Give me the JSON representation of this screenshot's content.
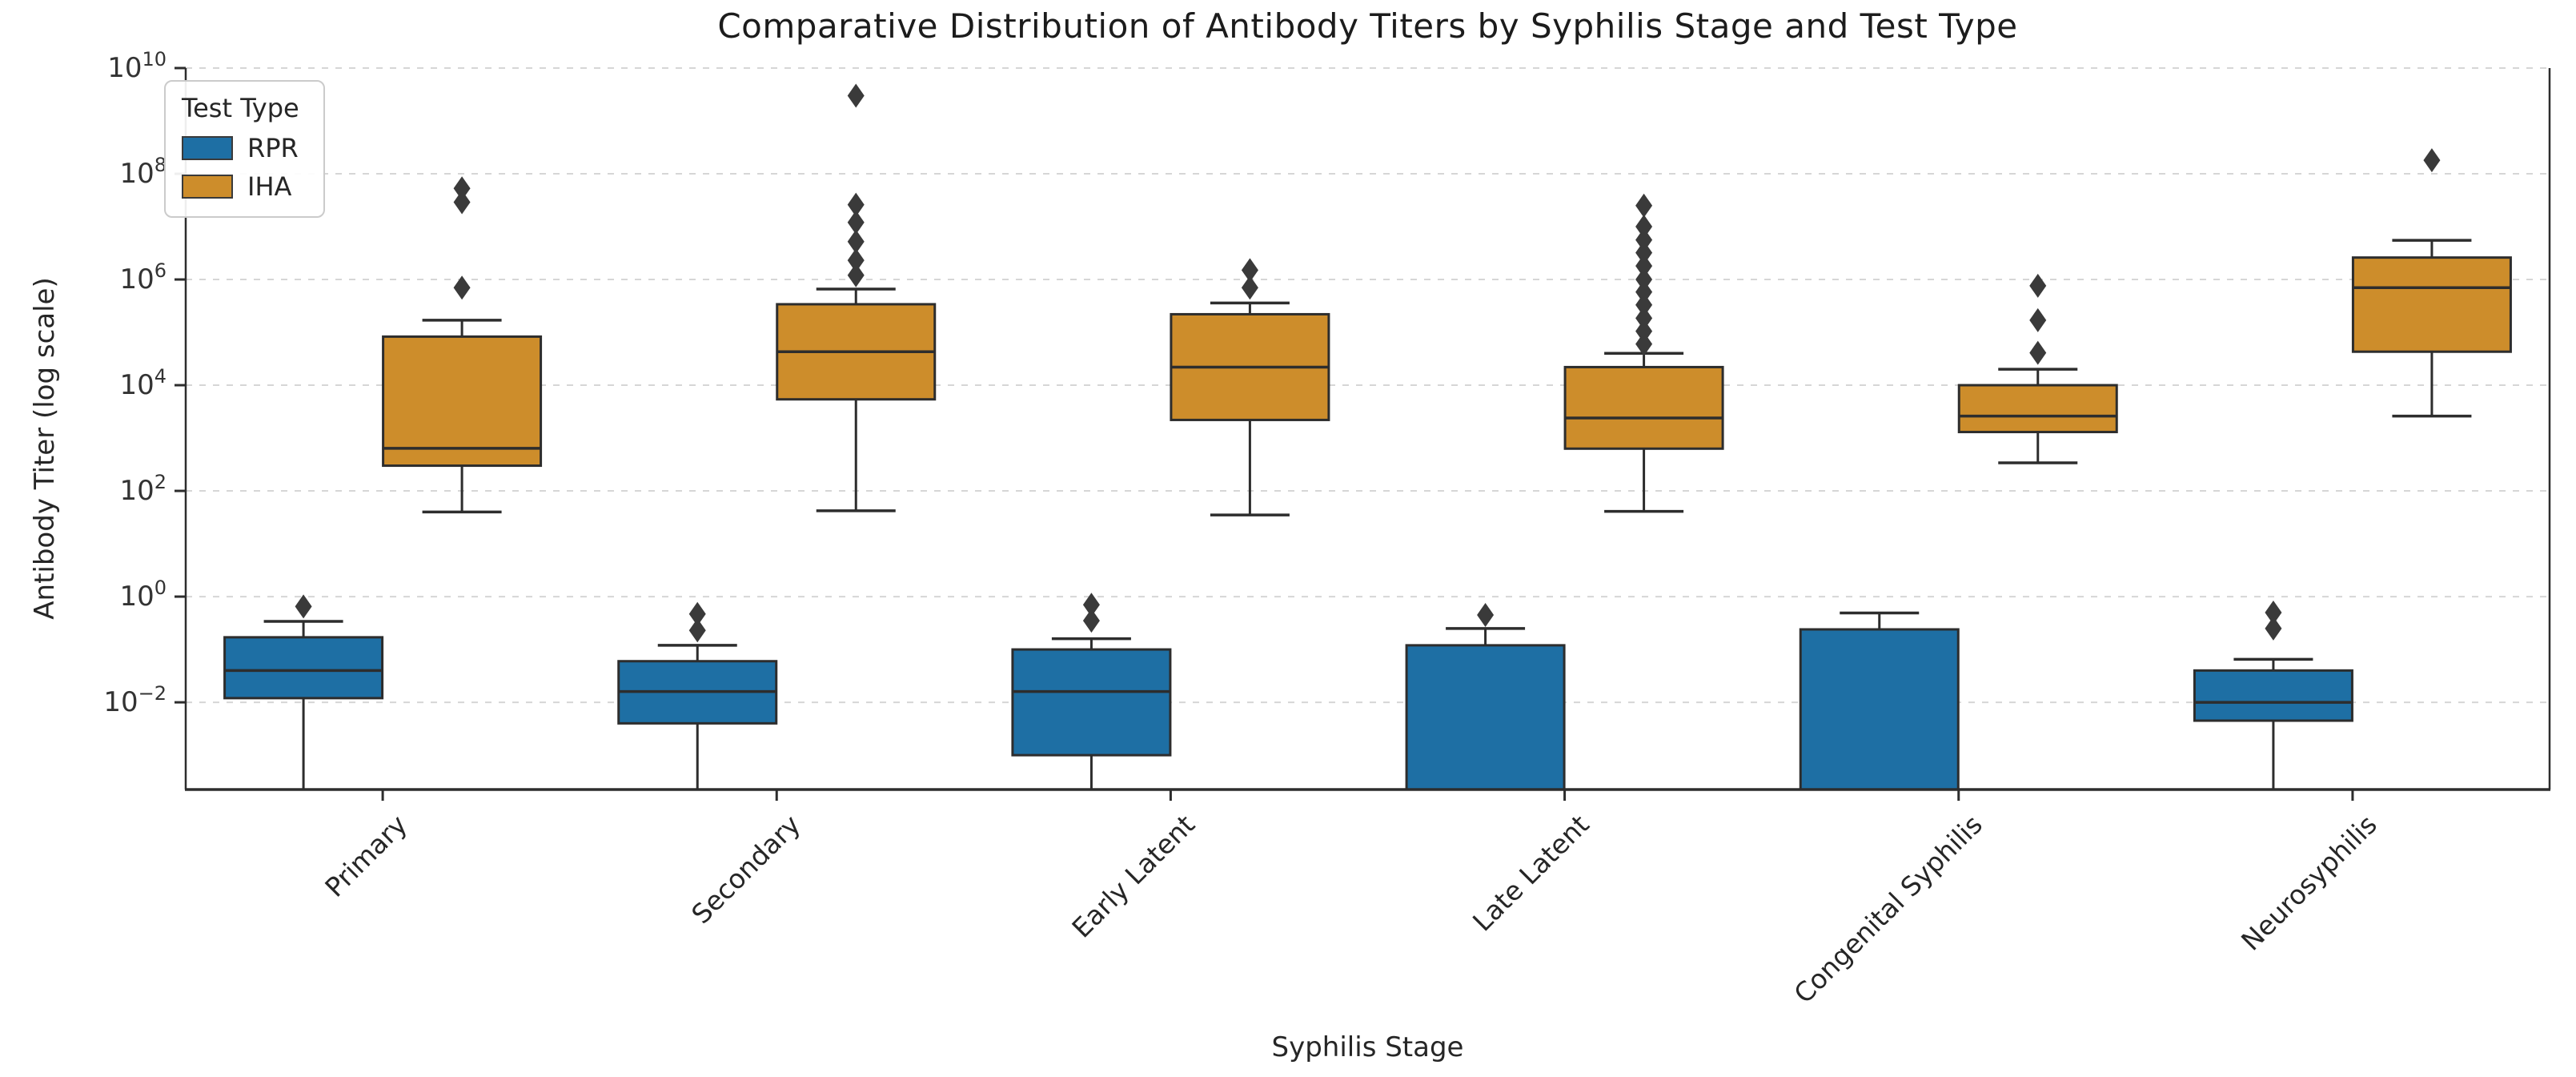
{
  "chart_data": {
    "type": "grouped_boxplot",
    "title": "Comparative Distribution of Antibody Titers by Syphilis Stage and Test Type",
    "xlabel": "Syphilis Stage",
    "ylabel": "Antibody Titer (log scale)",
    "y_axis": {
      "scale": "log",
      "tick_exponents": [
        10,
        8,
        6,
        4,
        2,
        0,
        -2
      ],
      "range_exponents": [
        -3.65,
        10
      ],
      "grid": "dashed"
    },
    "categories": [
      "Primary",
      "Secondary",
      "Early Latent",
      "Late Latent",
      "Congenital Syphilis",
      "Neurosyphilis"
    ],
    "legend": {
      "title": "Test Type",
      "position": "upper-left",
      "entries": [
        {
          "label": "RPR",
          "color": "#1e6fa4"
        },
        {
          "label": "IHA",
          "color": "#cd8d2b"
        }
      ]
    },
    "series": [
      {
        "name": "RPR",
        "color": "#1e6fa4",
        "boxes": [
          {
            "category": "Primary",
            "whisker_low": null,
            "q1": 0.012,
            "median": 0.04,
            "q3": 0.17,
            "whisker_high": 0.34,
            "outliers": [
              0.65
            ]
          },
          {
            "category": "Secondary",
            "whisker_low": null,
            "q1": 0.004,
            "median": 0.016,
            "q3": 0.06,
            "whisker_high": 0.12,
            "outliers": [
              0.23,
              0.47
            ]
          },
          {
            "category": "Early Latent",
            "whisker_low": null,
            "q1": 0.001,
            "median": 0.016,
            "q3": 0.1,
            "whisker_high": 0.16,
            "outliers": [
              0.35,
              0.7
            ]
          },
          {
            "category": "Late Latent",
            "whisker_low": null,
            "q1": null,
            "median": null,
            "q3": 0.12,
            "whisker_high": 0.25,
            "outliers": [
              0.45
            ]
          },
          {
            "category": "Congenital Syphilis",
            "whisker_low": null,
            "q1": null,
            "median": null,
            "q3": 0.24,
            "whisker_high": 0.49,
            "outliers": []
          },
          {
            "category": "Neurosyphilis",
            "whisker_low": null,
            "q1": 0.0045,
            "median": 0.01,
            "q3": 0.04,
            "whisker_high": 0.065,
            "outliers": [
              0.25,
              0.5
            ]
          }
        ]
      },
      {
        "name": "IHA",
        "color": "#cd8d2b",
        "boxes": [
          {
            "category": "Primary",
            "whisker_low": 40,
            "q1": 300,
            "median": 640,
            "q3": 83000,
            "whisker_high": 170000,
            "outliers": [
              700000,
              29000000,
              53000000
            ]
          },
          {
            "category": "Secondary",
            "whisker_low": 42,
            "q1": 5400,
            "median": 43000,
            "q3": 340000,
            "whisker_high": 660000,
            "outliers": [
              1200000,
              2300000,
              5200000,
              12000000,
              26000000,
              3000000000
            ]
          },
          {
            "category": "Early Latent",
            "whisker_low": 35,
            "q1": 2200,
            "median": 22000,
            "q3": 220000,
            "whisker_high": 360000,
            "outliers": [
              700000,
              1500000
            ]
          },
          {
            "category": "Late Latent",
            "whisker_low": 41,
            "q1": 630,
            "median": 2400,
            "q3": 22000,
            "whisker_high": 40000,
            "outliers": [
              60000,
              105000,
              185000,
              330000,
              580000,
              1000000,
              1800000,
              3200000,
              5600000,
              10000000,
              25000000
            ]
          },
          {
            "category": "Congenital Syphilis",
            "whisker_low": 340,
            "q1": 1300,
            "median": 2600,
            "q3": 10000,
            "whisker_high": 20000,
            "outliers": [
              41000,
              170000,
              760000
            ]
          },
          {
            "category": "Neurosyphilis",
            "whisker_low": 2600,
            "q1": 43000,
            "median": 700000,
            "q3": 2600000,
            "whisker_high": 5500000,
            "outliers": [
              180000000
            ]
          }
        ]
      }
    ]
  },
  "style": {
    "background": "#ffffff",
    "box_edge": "#2d2d2d",
    "median_color": "#2d2d2d",
    "whisker_color": "#2d2d2d",
    "outlier_color": "#3a3a3a",
    "grid_color": "#d6d6d6",
    "spine_color": "#2d2d2d",
    "text_color": "#262626"
  }
}
